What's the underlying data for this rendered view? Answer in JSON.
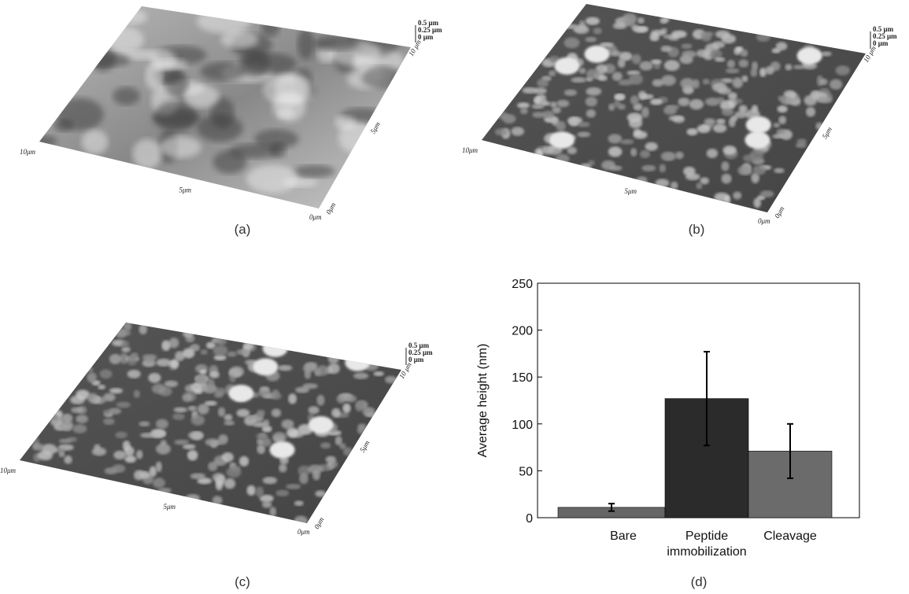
{
  "panels": [
    {
      "label": "(a)",
      "scale": [
        "0.5 μm",
        "0.25 μm",
        "0 μm"
      ],
      "corner": "10 μm",
      "left": "10μm",
      "mid": "5μm",
      "end": "0μm",
      "side": "5μm",
      "side_end": "0μm"
    },
    {
      "label": "(b)",
      "scale": [
        "0.5 μm",
        "0.25 μm",
        "0 μm"
      ],
      "corner": "10 μm",
      "left": "10μm",
      "mid": "5μm",
      "end": "0μm",
      "side": "5μm",
      "side_end": "0μm"
    },
    {
      "label": "(c)",
      "scale": [
        "0.5 μm",
        "0.25 μm",
        "0 μm"
      ],
      "corner": "10 μm",
      "left": "10μm",
      "mid": "5μm",
      "end": "0μm",
      "side": "5μm",
      "side_end": "0μm"
    }
  ],
  "chart_data": {
    "type": "bar",
    "label": "(d)",
    "y_label": "Average height (nm)",
    "categories": [
      "Bare",
      "Peptide immobilization",
      "Cleavage"
    ],
    "values": [
      11,
      127,
      71
    ],
    "errors": [
      4,
      50,
      29
    ],
    "colors": [
      "#666666",
      "#2b2b2b",
      "#6b6b6b"
    ],
    "ylim": [
      0,
      250
    ],
    "yticks": [
      0,
      50,
      100,
      150,
      200,
      250
    ]
  }
}
